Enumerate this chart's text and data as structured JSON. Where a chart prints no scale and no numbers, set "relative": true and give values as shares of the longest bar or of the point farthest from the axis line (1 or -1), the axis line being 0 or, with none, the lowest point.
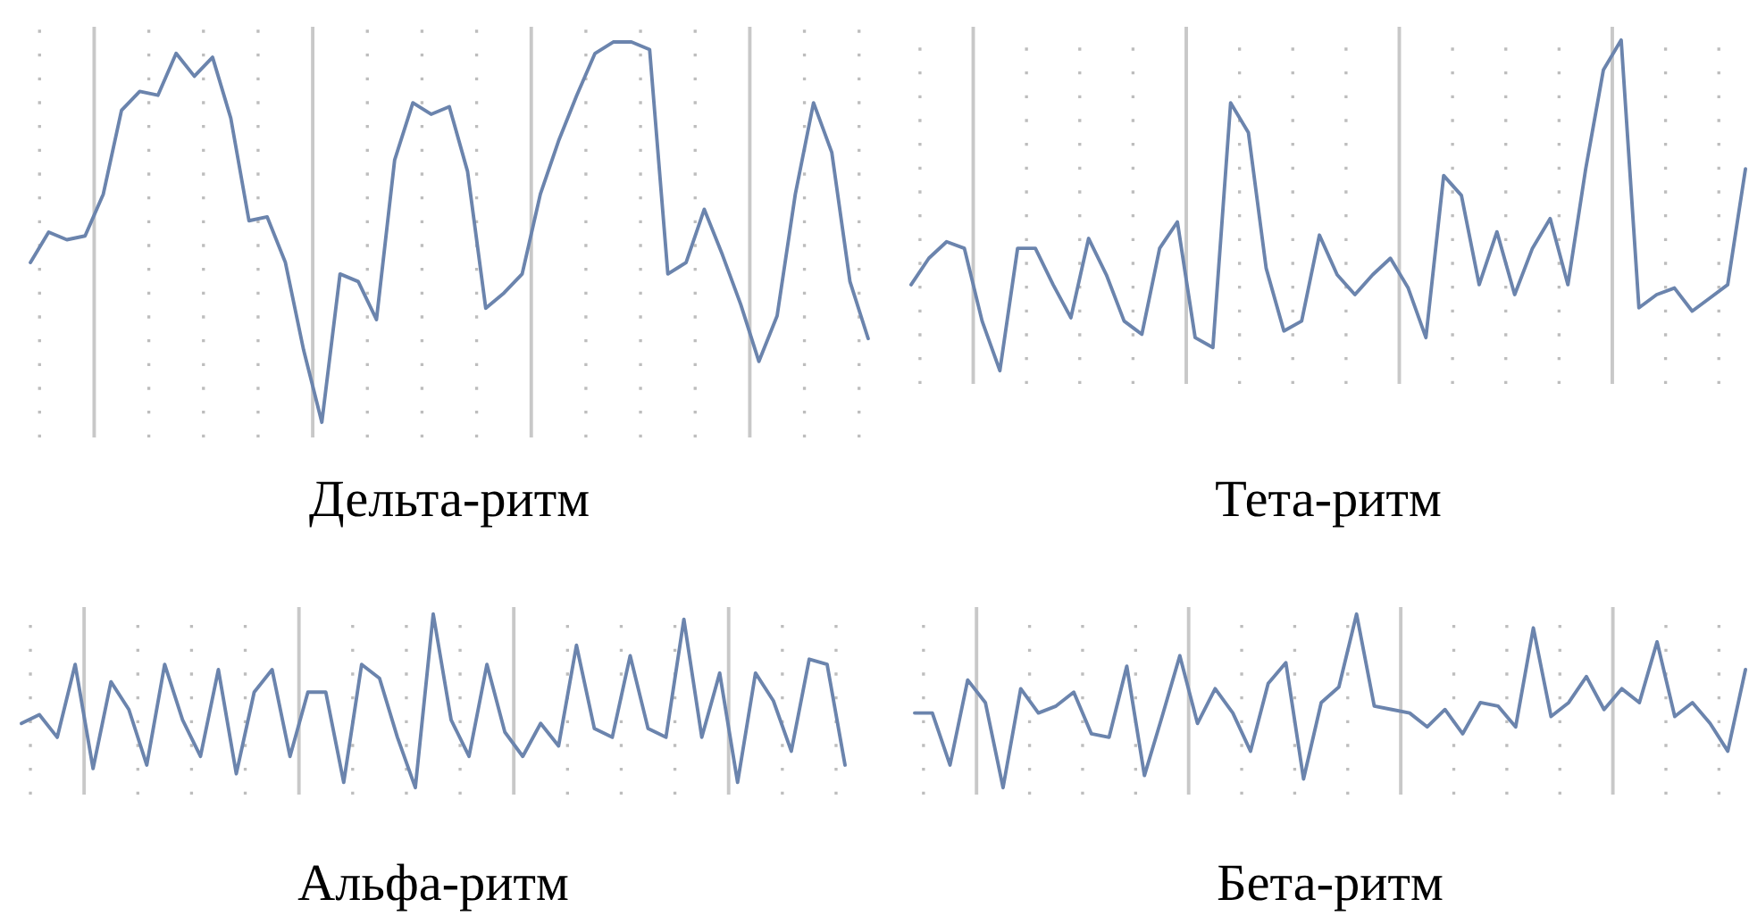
{
  "chart_data": [
    {
      "type": "line",
      "title": "Дельта-ритм",
      "relative": true,
      "grid": "x",
      "tick_labels": false,
      "legend": false,
      "marker": "none",
      "line_style": "solid",
      "categories": [
        null,
        null,
        null,
        null,
        null,
        null,
        null,
        null,
        null,
        null,
        null,
        null,
        null,
        null,
        null,
        null,
        null,
        null,
        null,
        null,
        null,
        null,
        null,
        null,
        null,
        null,
        null,
        null,
        null,
        null,
        null,
        null,
        null,
        null,
        null,
        null,
        null,
        null,
        null,
        null,
        null,
        null,
        null,
        null,
        null,
        null,
        null
      ],
      "series": [
        {
          "color": "#6b84ad",
          "values": [
            0.42,
            0.5,
            0.48,
            0.49,
            0.6,
            0.82,
            0.87,
            0.86,
            0.97,
            0.91,
            0.96,
            0.8,
            0.53,
            0.54,
            0.42,
            0.19,
            0,
            0.39,
            0.37,
            0.27,
            0.69,
            0.84,
            0.81,
            0.83,
            0.66,
            0.3,
            0.34,
            0.39,
            0.6,
            0.74,
            0.86,
            0.97,
            1,
            1,
            0.98,
            0.39,
            0.42,
            0.56,
            0.44,
            0.31,
            0.16,
            0.28,
            0.6,
            0.84,
            0.71,
            0.37,
            0.22
          ]
        }
      ]
    },
    {
      "type": "line",
      "title": "Тета-ритм",
      "relative": true,
      "grid": "x",
      "tick_labels": false,
      "legend": false,
      "marker": "none",
      "line_style": "solid",
      "categories": [
        null,
        null,
        null,
        null,
        null,
        null,
        null,
        null,
        null,
        null,
        null,
        null,
        null,
        null,
        null,
        null,
        null,
        null,
        null,
        null,
        null,
        null,
        null,
        null,
        null,
        null,
        null,
        null,
        null,
        null,
        null,
        null,
        null,
        null,
        null,
        null,
        null,
        null,
        null,
        null,
        null,
        null,
        null,
        null,
        null,
        null,
        null,
        null
      ],
      "series": [
        {
          "color": "#6b84ad",
          "values": [
            0.26,
            0.34,
            0.39,
            0.37,
            0.15,
            0,
            0.37,
            0.37,
            0.26,
            0.16,
            0.4,
            0.29,
            0.15,
            0.11,
            0.37,
            0.45,
            0.1,
            0.07,
            0.81,
            0.72,
            0.31,
            0.12,
            0.15,
            0.41,
            0.29,
            0.23,
            0.29,
            0.34,
            0.25,
            0.1,
            0.59,
            0.53,
            0.26,
            0.42,
            0.23,
            0.37,
            0.46,
            0.26,
            0.61,
            0.91,
            1,
            0.19,
            0.23,
            0.25,
            0.18,
            0.22,
            0.26,
            0.61
          ]
        }
      ]
    },
    {
      "type": "line",
      "title": "Альфа-ритм",
      "relative": true,
      "grid": "x",
      "tick_labels": false,
      "legend": false,
      "marker": "none",
      "line_style": "solid",
      "categories": [
        null,
        null,
        null,
        null,
        null,
        null,
        null,
        null,
        null,
        null,
        null,
        null,
        null,
        null,
        null,
        null,
        null,
        null,
        null,
        null,
        null,
        null,
        null,
        null,
        null,
        null,
        null,
        null,
        null,
        null,
        null,
        null,
        null,
        null,
        null,
        null,
        null,
        null,
        null,
        null,
        null,
        null,
        null,
        null,
        null,
        null,
        null
      ],
      "series": [
        {
          "color": "#6b84ad",
          "values": [
            0.37,
            0.42,
            0.29,
            0.71,
            0.11,
            0.61,
            0.45,
            0.13,
            0.71,
            0.39,
            0.18,
            0.68,
            0.08,
            0.55,
            0.68,
            0.18,
            0.55,
            0.55,
            0.03,
            0.71,
            0.63,
            0.29,
            0,
            1,
            0.39,
            0.18,
            0.71,
            0.32,
            0.18,
            0.37,
            0.24,
            0.82,
            0.34,
            0.29,
            0.76,
            0.34,
            0.29,
            0.97,
            0.29,
            0.66,
            0.03,
            0.66,
            0.5,
            0.21,
            0.74,
            0.71,
            0.13
          ]
        }
      ]
    },
    {
      "type": "line",
      "title": "Бета-ритм",
      "relative": true,
      "grid": "x",
      "tick_labels": false,
      "legend": false,
      "marker": "none",
      "line_style": "solid",
      "categories": [
        null,
        null,
        null,
        null,
        null,
        null,
        null,
        null,
        null,
        null,
        null,
        null,
        null,
        null,
        null,
        null,
        null,
        null,
        null,
        null,
        null,
        null,
        null,
        null,
        null,
        null,
        null,
        null,
        null,
        null,
        null,
        null,
        null,
        null,
        null,
        null,
        null,
        null,
        null,
        null,
        null,
        null,
        null,
        null,
        null,
        null,
        null,
        null
      ],
      "series": [
        {
          "color": "#6b84ad",
          "values": [
            0.43,
            0.43,
            0.13,
            0.62,
            0.49,
            0,
            0.57,
            0.43,
            0.47,
            0.55,
            0.31,
            0.29,
            0.7,
            0.07,
            0.41,
            0.76,
            0.37,
            0.57,
            0.43,
            0.21,
            0.6,
            0.72,
            0.05,
            0.49,
            0.58,
            1,
            0.47,
            0.45,
            0.43,
            0.35,
            0.45,
            0.31,
            0.49,
            0.47,
            0.35,
            0.92,
            0.41,
            0.49,
            0.64,
            0.45,
            0.57,
            0.49,
            0.84,
            0.41,
            0.49,
            0.37,
            0.21,
            0.68
          ]
        }
      ]
    }
  ]
}
